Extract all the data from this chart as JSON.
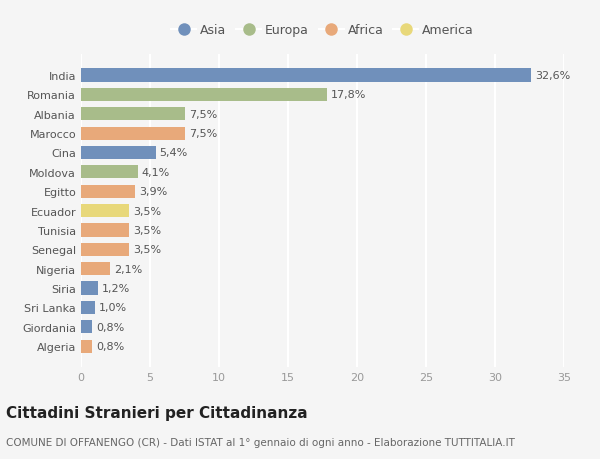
{
  "categories": [
    "India",
    "Romania",
    "Albania",
    "Marocco",
    "Cina",
    "Moldova",
    "Egitto",
    "Ecuador",
    "Tunisia",
    "Senegal",
    "Nigeria",
    "Siria",
    "Sri Lanka",
    "Giordania",
    "Algeria"
  ],
  "values": [
    32.6,
    17.8,
    7.5,
    7.5,
    5.4,
    4.1,
    3.9,
    3.5,
    3.5,
    3.5,
    2.1,
    1.2,
    1.0,
    0.8,
    0.8
  ],
  "labels": [
    "32,6%",
    "17,8%",
    "7,5%",
    "7,5%",
    "5,4%",
    "4,1%",
    "3,9%",
    "3,5%",
    "3,5%",
    "3,5%",
    "2,1%",
    "1,2%",
    "1,0%",
    "0,8%",
    "0,8%"
  ],
  "continents": [
    "Asia",
    "Europa",
    "Europa",
    "Africa",
    "Asia",
    "Europa",
    "Africa",
    "America",
    "Africa",
    "Africa",
    "Africa",
    "Asia",
    "Asia",
    "Asia",
    "Africa"
  ],
  "continent_colors": {
    "Asia": "#7090bb",
    "Europa": "#a8bc8a",
    "Africa": "#e8a97a",
    "America": "#e8d87a"
  },
  "legend_order": [
    "Asia",
    "Europa",
    "Africa",
    "America"
  ],
  "xlim": [
    0,
    35
  ],
  "xticks": [
    0,
    5,
    10,
    15,
    20,
    25,
    30,
    35
  ],
  "title": "Cittadini Stranieri per Cittadinanza",
  "subtitle": "COMUNE DI OFFANENGO (CR) - Dati ISTAT al 1° gennaio di ogni anno - Elaborazione TUTTITALIA.IT",
  "background_color": "#f5f5f5",
  "bar_height": 0.68,
  "grid_color": "#ffffff",
  "label_fontsize": 8,
  "tick_fontsize": 8,
  "ytick_fontsize": 8,
  "title_fontsize": 11,
  "subtitle_fontsize": 7.5
}
